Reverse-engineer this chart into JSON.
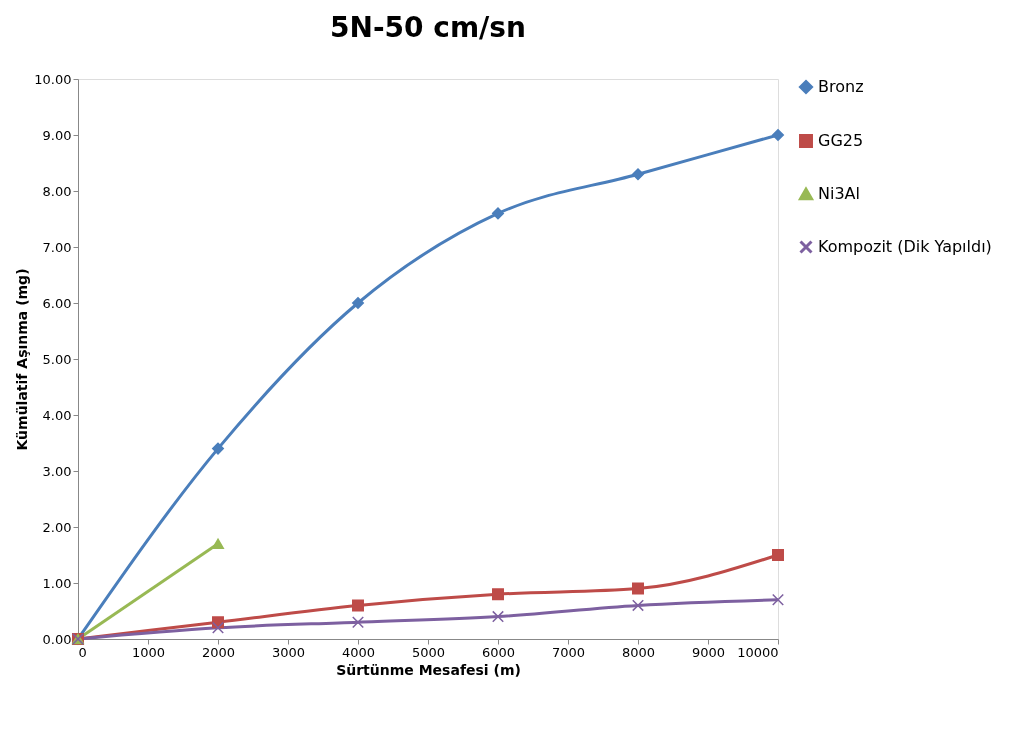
{
  "chart_data": {
    "type": "line",
    "title": "5N-50 cm/sn",
    "xlabel": "Sürtünme Mesafesi (m)",
    "ylabel": "Kümülatif Aşınma (mg)",
    "x": [
      0,
      2000,
      4000,
      6000,
      8000,
      10000
    ],
    "series": [
      {
        "name": "Bronz",
        "color": "#4a7ebb",
        "marker": "diamond",
        "values": [
          0,
          3.4,
          6.0,
          7.6,
          8.3,
          9.0
        ]
      },
      {
        "name": "GG25",
        "color": "#be4b48",
        "marker": "square",
        "values": [
          0,
          0.3,
          0.6,
          0.8,
          0.9,
          1.5
        ]
      },
      {
        "name": "Ni3Al",
        "color": "#98b954",
        "marker": "triangle",
        "x": [
          0,
          2000
        ],
        "values": [
          0,
          1.7
        ]
      },
      {
        "name": "Kompozit (Dik Yapıldı)",
        "color": "#7d60a0",
        "marker": "cross",
        "values": [
          0,
          0.2,
          0.3,
          0.4,
          0.6,
          0.7
        ]
      }
    ],
    "xlim": [
      0,
      10000
    ],
    "xticks": [
      0,
      1000,
      2000,
      3000,
      4000,
      5000,
      6000,
      7000,
      8000,
      9000,
      10000
    ],
    "ylim": [
      0,
      10
    ],
    "yticks": [
      {
        "value": 0,
        "label": "0.00"
      },
      {
        "value": 1,
        "label": "1.00"
      },
      {
        "value": 2,
        "label": "2.00"
      },
      {
        "value": 3,
        "label": "3.00"
      },
      {
        "value": 4,
        "label": "4.00"
      },
      {
        "value": 5,
        "label": "5.00"
      },
      {
        "value": 6,
        "label": "6.00"
      },
      {
        "value": 7,
        "label": "7.00"
      },
      {
        "value": 8,
        "label": "8.00"
      },
      {
        "value": 9,
        "label": "9.00"
      },
      {
        "value": 10,
        "label": "10.00"
      }
    ],
    "grid": false,
    "legend": "right",
    "line_style": "solid"
  }
}
